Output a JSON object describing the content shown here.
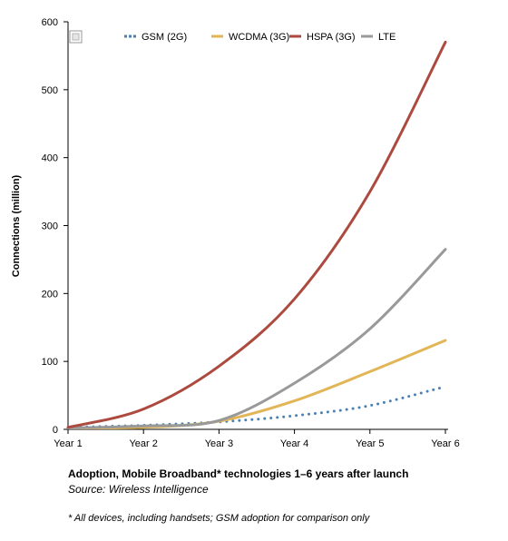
{
  "chart_data": {
    "type": "line",
    "ylabel": "Connections (million)",
    "xlabel": "",
    "categories": [
      "Year 1",
      "Year 2",
      "Year 3",
      "Year 4",
      "Year 5",
      "Year 6"
    ],
    "y_ticks": [
      0,
      100,
      200,
      300,
      400,
      500,
      600
    ],
    "ylim": [
      0,
      600
    ],
    "grid": false,
    "legend_placement": "top",
    "series": [
      {
        "name": "GSM (2G)",
        "color": "#4a7fb5",
        "style": "dotted",
        "values": [
          3,
          6,
          11,
          20,
          35,
          63
        ]
      },
      {
        "name": "WCDMA (3G)",
        "color": "#e2b657",
        "style": "solid",
        "values": [
          2,
          3,
          12,
          42,
          85,
          131
        ]
      },
      {
        "name": "HSPA (3G)",
        "color": "#ad4a3f",
        "style": "solid",
        "values": [
          3,
          30,
          93,
          192,
          350,
          570
        ]
      },
      {
        "name": "LTE",
        "color": "#999999",
        "style": "solid",
        "values": [
          2,
          5,
          13,
          68,
          148,
          265
        ]
      }
    ]
  },
  "caption": {
    "title": "Adoption, Mobile Broadband* technologies 1–6 years after launch",
    "source": "Source: Wireless Intelligence",
    "footnote": "* All devices, including handsets; GSM adoption for comparison only"
  }
}
